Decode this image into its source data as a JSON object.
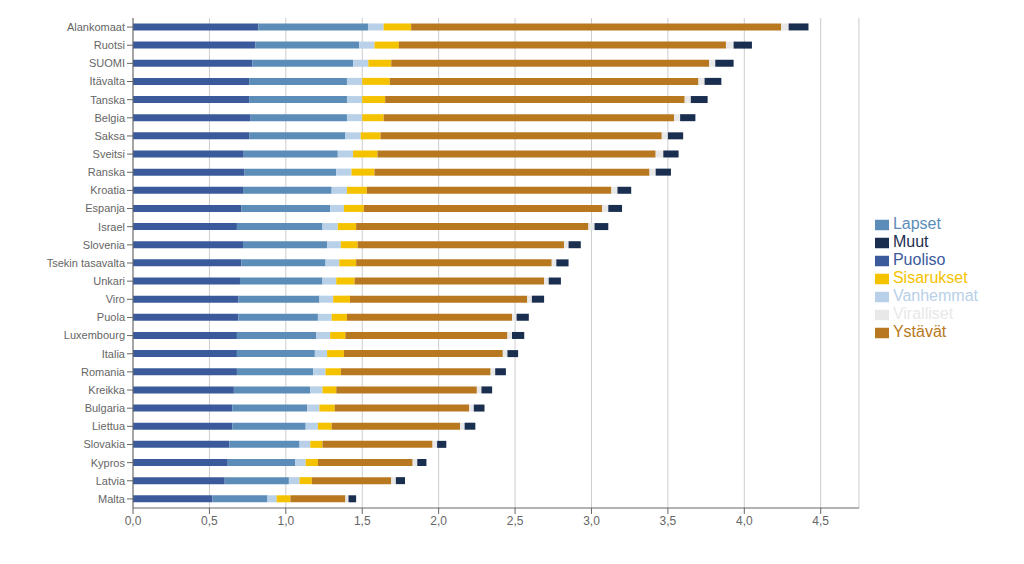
{
  "chart_data": {
    "type": "bar",
    "orientation": "horizontal",
    "stacked": true,
    "grid": true,
    "legend": "right",
    "categories": [
      "Alankomaat",
      "Ruotsi",
      "SUOMI",
      "Itävalta",
      "Tanska",
      "Belgia",
      "Saksa",
      "Sveitsi",
      "Ranska",
      "Kroatia",
      "Espanja",
      "Israel",
      "Slovenia",
      "Tsekin tasavalta",
      "Unkari",
      "Viro",
      "Puola",
      "Luxembourg",
      "Italia",
      "Romania",
      "Kreikka",
      "Bulgaria",
      "Liettua",
      "Slovakia",
      "Kypros",
      "Latvia",
      "Malta"
    ],
    "series": [
      {
        "name": "Puoliso",
        "color": "#3a5a9c",
        "values": [
          0.82,
          0.8,
          0.78,
          0.76,
          0.76,
          0.77,
          0.76,
          0.72,
          0.73,
          0.72,
          0.71,
          0.68,
          0.72,
          0.71,
          0.7,
          0.69,
          0.69,
          0.68,
          0.68,
          0.68,
          0.66,
          0.65,
          0.65,
          0.63,
          0.62,
          0.6,
          0.52
        ]
      },
      {
        "name": "Lapset",
        "color": "#5b8db8",
        "values": [
          0.72,
          0.68,
          0.66,
          0.64,
          0.64,
          0.63,
          0.63,
          0.62,
          0.6,
          0.58,
          0.58,
          0.56,
          0.55,
          0.55,
          0.54,
          0.53,
          0.52,
          0.52,
          0.51,
          0.5,
          0.5,
          0.49,
          0.48,
          0.46,
          0.44,
          0.42,
          0.36
        ]
      },
      {
        "name": "Vanhemmat",
        "color": "#b8d0e8",
        "values": [
          0.1,
          0.1,
          0.1,
          0.1,
          0.1,
          0.1,
          0.1,
          0.1,
          0.1,
          0.1,
          0.09,
          0.1,
          0.09,
          0.09,
          0.09,
          0.09,
          0.09,
          0.09,
          0.08,
          0.08,
          0.08,
          0.08,
          0.08,
          0.07,
          0.07,
          0.07,
          0.06
        ]
      },
      {
        "name": "Sisarukset",
        "color": "#f5c200",
        "values": [
          0.18,
          0.16,
          0.15,
          0.18,
          0.15,
          0.14,
          0.13,
          0.16,
          0.15,
          0.13,
          0.13,
          0.12,
          0.11,
          0.11,
          0.12,
          0.11,
          0.1,
          0.1,
          0.11,
          0.1,
          0.09,
          0.1,
          0.09,
          0.08,
          0.08,
          0.08,
          0.09
        ]
      },
      {
        "name": "Ystävät",
        "color": "#b87820",
        "values": [
          2.42,
          2.14,
          2.08,
          2.02,
          1.96,
          1.9,
          1.84,
          1.82,
          1.8,
          1.6,
          1.56,
          1.52,
          1.35,
          1.28,
          1.24,
          1.16,
          1.08,
          1.06,
          1.04,
          0.98,
          0.92,
          0.88,
          0.84,
          0.72,
          0.62,
          0.52,
          0.36
        ]
      },
      {
        "name": "Viralliset",
        "color": "#e8e8e8",
        "values": [
          0.05,
          0.05,
          0.04,
          0.04,
          0.04,
          0.04,
          0.04,
          0.05,
          0.04,
          0.04,
          0.04,
          0.04,
          0.03,
          0.03,
          0.03,
          0.03,
          0.03,
          0.03,
          0.03,
          0.03,
          0.03,
          0.03,
          0.03,
          0.03,
          0.03,
          0.03,
          0.02
        ]
      },
      {
        "name": "Muut",
        "color": "#1a2e50",
        "values": [
          0.13,
          0.12,
          0.12,
          0.11,
          0.11,
          0.1,
          0.1,
          0.1,
          0.1,
          0.09,
          0.09,
          0.09,
          0.08,
          0.08,
          0.08,
          0.08,
          0.08,
          0.08,
          0.07,
          0.07,
          0.07,
          0.07,
          0.07,
          0.06,
          0.06,
          0.06,
          0.05
        ]
      }
    ],
    "xlim": [
      0,
      4.75
    ],
    "xticks": [
      {
        "value": 0.0,
        "label": "0,0"
      },
      {
        "value": 0.5,
        "label": "0,5"
      },
      {
        "value": 1.0,
        "label": "1,0"
      },
      {
        "value": 1.5,
        "label": "1,5"
      },
      {
        "value": 2.0,
        "label": "2,0"
      },
      {
        "value": 2.5,
        "label": "2,5"
      },
      {
        "value": 3.0,
        "label": "3,0"
      },
      {
        "value": 3.5,
        "label": "3,5"
      },
      {
        "value": 4.0,
        "label": "4,0"
      },
      {
        "value": 4.5,
        "label": "4,5"
      }
    ]
  }
}
